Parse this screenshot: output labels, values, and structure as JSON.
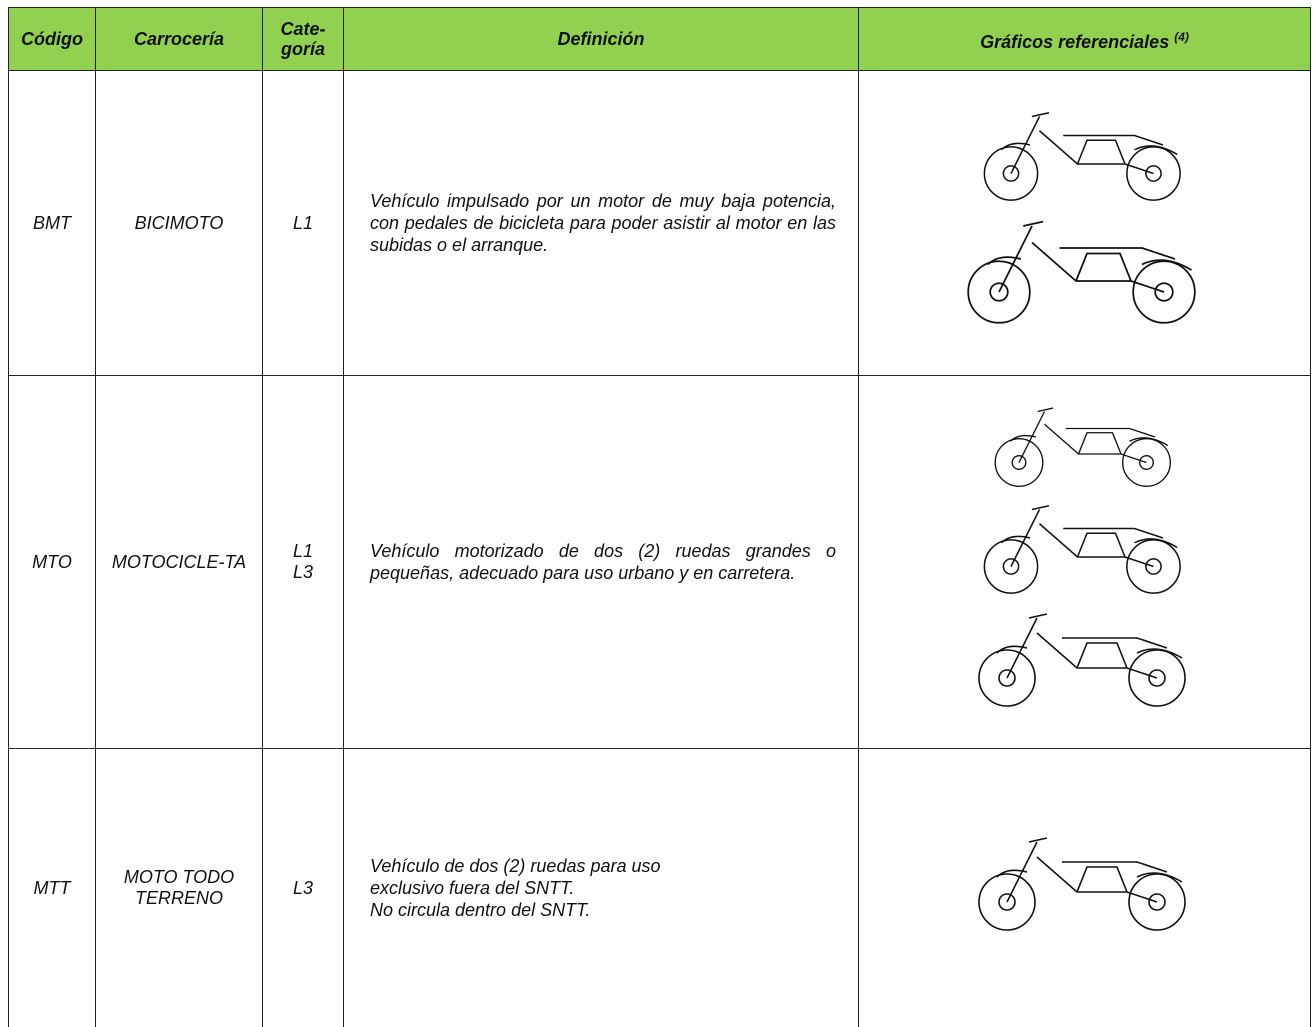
{
  "table": {
    "header": {
      "code": "Código",
      "body": "Carrocería",
      "category": "Cate-goría",
      "definition": "Definición",
      "graphics": "Gráficos referenciales",
      "graphics_note": "(4)"
    },
    "rows": [
      {
        "code": "BMT",
        "body": "BICIMOTO",
        "category": [
          "L1"
        ],
        "definition": [
          "Vehículo impulsado por un motor de muy baja potencia, con pedales de bicicleta para poder asistir al motor en las subidas o el arranque."
        ]
      },
      {
        "code": "MTO",
        "body": "MOTOCICLE-TA",
        "category": [
          "L1",
          "L3"
        ],
        "definition": [
          "Vehículo motorizado de dos (2) ruedas grandes o pequeñas, adecuado para uso urbano y en carretera."
        ]
      },
      {
        "code": "MTT",
        "body": "MOTO TODO TERRENO",
        "category": [
          "L3"
        ],
        "definition": [
          "Vehículo de dos (2) ruedas para uso exclusivo fuera del SNTT.",
          "No circula dentro del SNTT."
        ]
      }
    ]
  }
}
